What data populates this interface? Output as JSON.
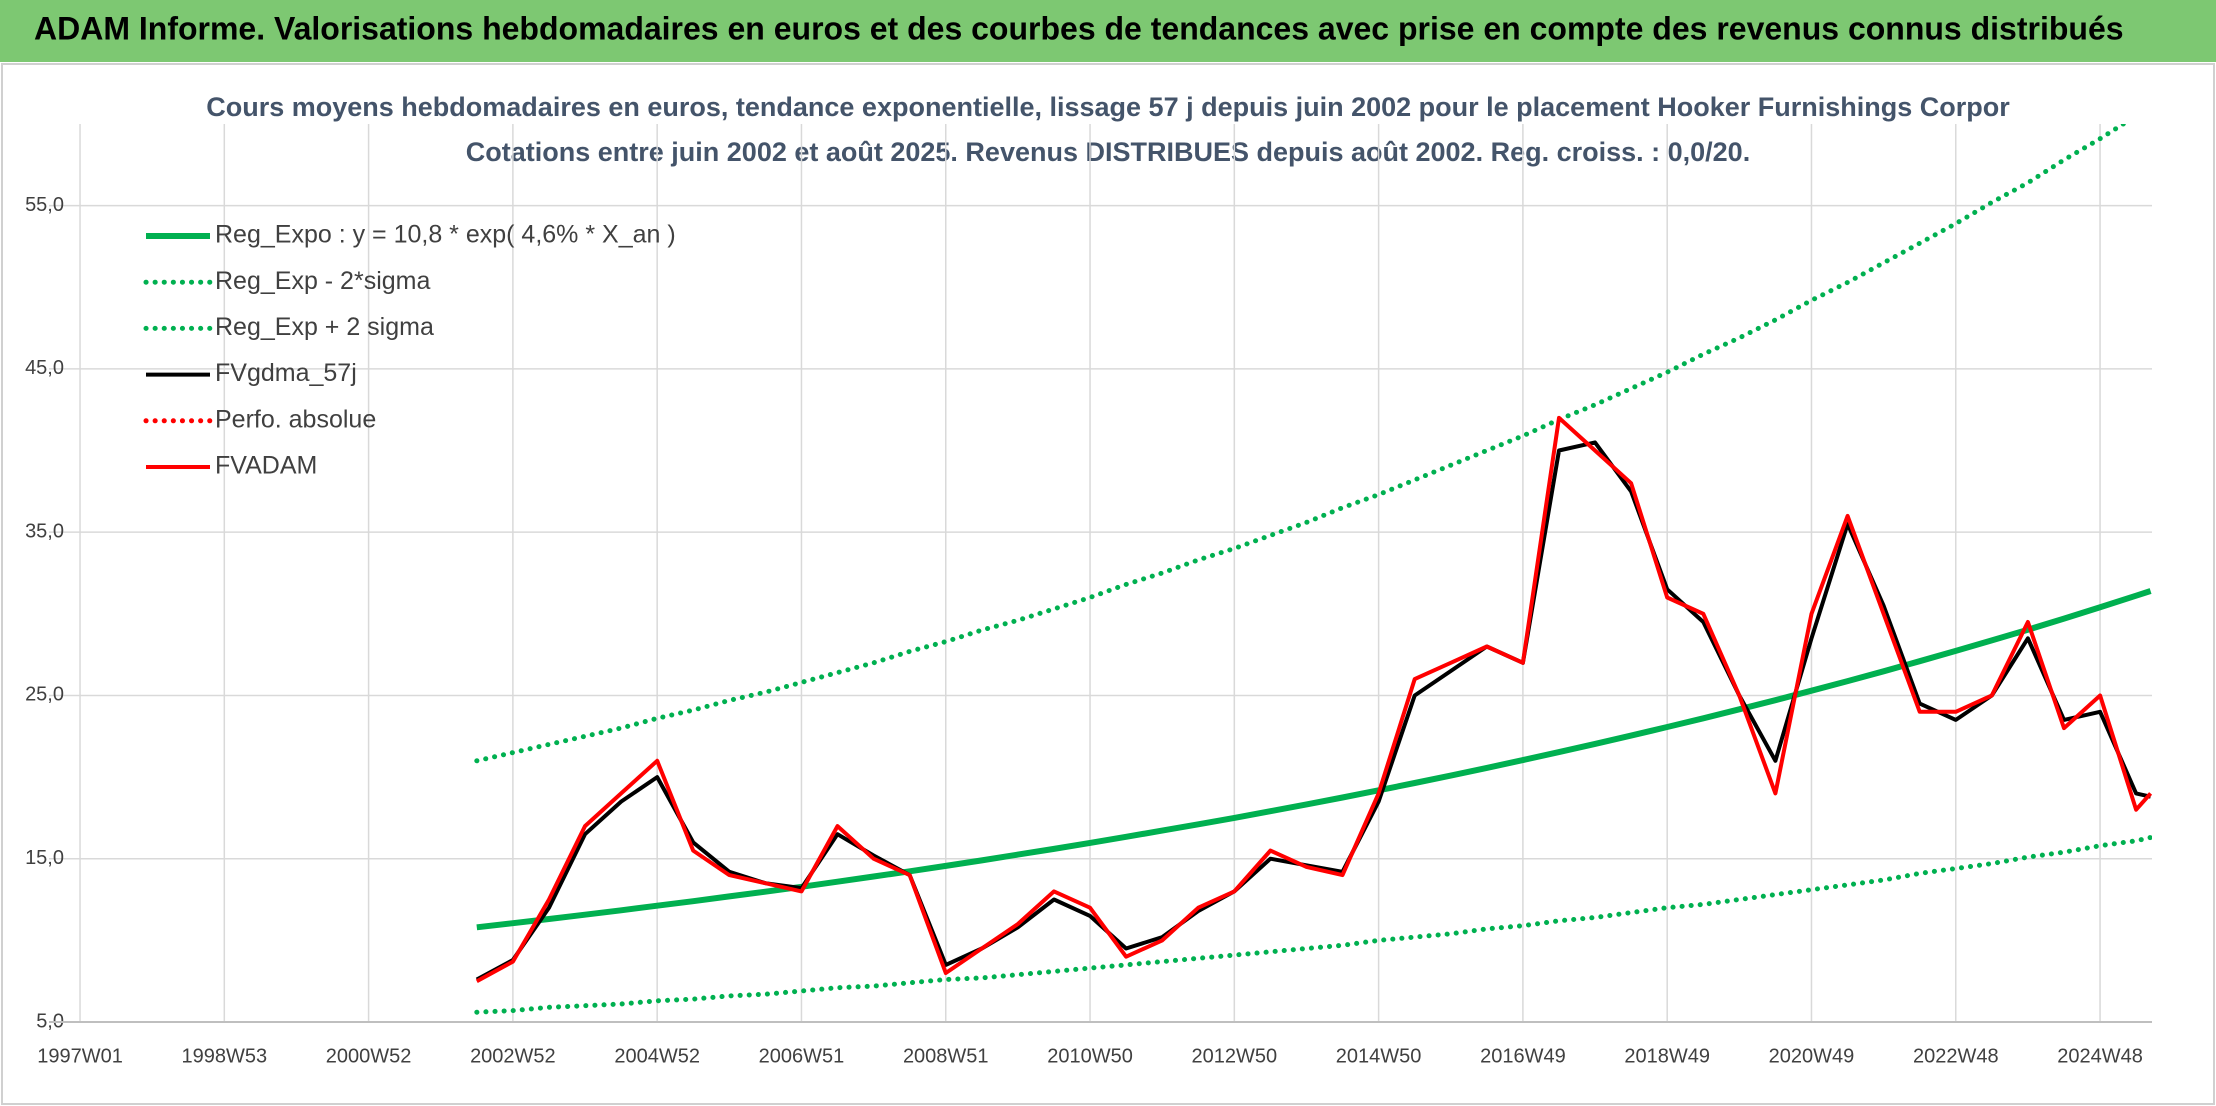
{
  "header": {
    "title": "ADAM Informe. Valorisations hebdomadaires en euros et des courbes de tendances avec prise en compte des revenus connus distribués"
  },
  "chart_data": {
    "type": "line",
    "title": "Cours moyens hebdomadaires en euros, tendance exponentielle, lissage 57 j depuis juin 2002 pour le placement Hooker Furnishings Corpor",
    "subtitle": "Cotations entre juin 2002 et août 2025. Revenus DISTRIBUES depuis août 2002. Reg. croiss. : 0,0/20.",
    "x": [
      2002.5,
      2003.0,
      2003.5,
      2004.0,
      2004.5,
      2005.0,
      2005.5,
      2006.0,
      2006.5,
      2007.0,
      2007.5,
      2008.0,
      2008.5,
      2009.0,
      2009.5,
      2010.0,
      2010.5,
      2011.0,
      2011.5,
      2012.0,
      2012.5,
      2013.0,
      2013.5,
      2014.0,
      2014.5,
      2015.0,
      2015.5,
      2016.0,
      2016.5,
      2017.0,
      2017.5,
      2018.0,
      2018.5,
      2019.0,
      2019.5,
      2020.0,
      2020.5,
      2021.0,
      2021.5,
      2022.0,
      2022.5,
      2023.0,
      2023.5,
      2024.0,
      2024.5,
      2025.0,
      2025.5,
      2025.7
    ],
    "series": [
      {
        "name": "Reg_Expo : y = 10,8 * exp( 4,6% *  X_an )",
        "color": "#00b050",
        "style": "solid",
        "values": [
          10.8,
          11.05,
          11.31,
          11.57,
          11.84,
          12.12,
          12.4,
          12.69,
          12.98,
          13.28,
          13.59,
          13.91,
          14.23,
          14.56,
          14.9,
          15.25,
          15.6,
          15.97,
          16.34,
          16.72,
          17.11,
          17.5,
          17.91,
          18.33,
          18.75,
          19.19,
          19.64,
          20.09,
          20.56,
          21.04,
          21.53,
          22.03,
          22.54,
          23.07,
          23.6,
          24.15,
          24.71,
          25.29,
          25.88,
          26.48,
          27.1,
          27.73,
          28.37,
          29.03,
          29.71,
          30.4,
          31.11,
          31.4
        ]
      },
      {
        "name": "Reg_Exp - 2*sigma",
        "color": "#00b050",
        "style": "dotted",
        "values": [
          5.6,
          5.7,
          5.9,
          6.0,
          6.1,
          6.3,
          6.4,
          6.6,
          6.7,
          6.9,
          7.1,
          7.2,
          7.4,
          7.6,
          7.7,
          7.9,
          8.1,
          8.3,
          8.5,
          8.7,
          8.9,
          9.1,
          9.3,
          9.5,
          9.7,
          10.0,
          10.2,
          10.4,
          10.7,
          10.9,
          11.2,
          11.4,
          11.7,
          12.0,
          12.2,
          12.5,
          12.8,
          13.1,
          13.4,
          13.7,
          14.1,
          14.4,
          14.7,
          15.1,
          15.4,
          15.8,
          16.1,
          16.3
        ]
      },
      {
        "name": "Reg_Exp + 2 sigma",
        "color": "#00b050",
        "style": "dotted",
        "values": [
          21.0,
          21.5,
          22.0,
          22.5,
          23.0,
          23.6,
          24.1,
          24.7,
          25.2,
          25.8,
          26.4,
          27.0,
          27.7,
          28.3,
          29.0,
          29.6,
          30.3,
          31.0,
          31.8,
          32.5,
          33.3,
          34.0,
          34.8,
          35.6,
          36.5,
          37.3,
          38.2,
          39.1,
          40.0,
          40.9,
          41.9,
          42.8,
          43.8,
          44.8,
          45.9,
          46.9,
          48.0,
          49.2,
          50.3,
          51.5,
          52.7,
          53.9,
          55.2,
          56.4,
          57.8,
          59.1,
          60.5,
          61.0
        ]
      },
      {
        "name": "FVgdma_57j",
        "color": "#000000",
        "style": "solid",
        "values": [
          7.6,
          8.8,
          12.0,
          16.5,
          18.5,
          20.0,
          16.0,
          14.2,
          13.5,
          13.2,
          16.5,
          15.2,
          14.0,
          8.5,
          9.5,
          10.8,
          12.5,
          11.5,
          9.5,
          10.2,
          11.8,
          13.0,
          15.0,
          14.6,
          14.2,
          18.5,
          25.0,
          26.5,
          28.0,
          27.0,
          40.0,
          40.5,
          37.5,
          31.5,
          29.5,
          25.0,
          21.0,
          28.5,
          35.5,
          30.5,
          24.5,
          23.5,
          25.0,
          28.5,
          23.5,
          24.0,
          19.0,
          18.8
        ]
      },
      {
        "name": "Perfo. absolue",
        "color": "#ff0000",
        "style": "dotted",
        "values": [
          null,
          null,
          null,
          null,
          null,
          null,
          null,
          null,
          null,
          null,
          null,
          null,
          null,
          null,
          null,
          null,
          null,
          null,
          null,
          null,
          null,
          null,
          null,
          null,
          null,
          null,
          null,
          null,
          null,
          null,
          null,
          null,
          null,
          null,
          null,
          null,
          null,
          null,
          null,
          null,
          null,
          null,
          null,
          null,
          null,
          null,
          null,
          null
        ]
      },
      {
        "name": "FVADAM",
        "color": "#ff0000",
        "style": "solid",
        "values": [
          7.5,
          8.7,
          12.5,
          17.0,
          19.0,
          21.0,
          15.5,
          14.0,
          13.5,
          13.0,
          17.0,
          15.0,
          14.0,
          8.0,
          9.5,
          11.0,
          13.0,
          12.0,
          9.0,
          10.0,
          12.0,
          13.0,
          15.5,
          14.5,
          14.0,
          19.0,
          26.0,
          27.0,
          28.0,
          27.0,
          42.0,
          40.0,
          38.0,
          31.0,
          30.0,
          25.0,
          19.0,
          30.0,
          36.0,
          30.0,
          24.0,
          24.0,
          25.0,
          29.5,
          23.0,
          25.0,
          18.0,
          19.0
        ]
      }
    ],
    "xlim": [
      1996.57,
      2025.72
    ],
    "xticks": [
      {
        "value": 1997.0,
        "label": "1997W01"
      },
      {
        "value": 1999.0,
        "label": "1998W53"
      },
      {
        "value": 2001.0,
        "label": "2000W52"
      },
      {
        "value": 2003.0,
        "label": "2002W52"
      },
      {
        "value": 2005.0,
        "label": "2004W52"
      },
      {
        "value": 2007.0,
        "label": "2006W51"
      },
      {
        "value": 2009.0,
        "label": "2008W51"
      },
      {
        "value": 2011.0,
        "label": "2010W50"
      },
      {
        "value": 2013.0,
        "label": "2012W50"
      },
      {
        "value": 2015.0,
        "label": "2014W50"
      },
      {
        "value": 2017.0,
        "label": "2016W49"
      },
      {
        "value": 2019.0,
        "label": "2018W49"
      },
      {
        "value": 2021.0,
        "label": "2020W49"
      },
      {
        "value": 2023.0,
        "label": "2022W48"
      },
      {
        "value": 2025.0,
        "label": "2024W48"
      }
    ],
    "ylim": [
      5,
      60
    ],
    "yticks": [
      {
        "value": 5,
        "label": "5,0"
      },
      {
        "value": 15,
        "label": "15,0"
      },
      {
        "value": 25,
        "label": "25,0"
      },
      {
        "value": 35,
        "label": "35,0"
      },
      {
        "value": 45,
        "label": "45,0"
      },
      {
        "value": 55,
        "label": "55,0"
      }
    ],
    "grid": true,
    "legend": "upper left"
  }
}
